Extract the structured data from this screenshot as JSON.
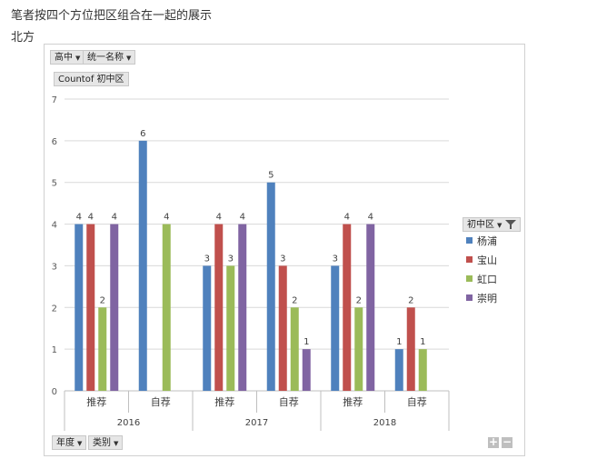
{
  "page": {
    "heading": "笔者按四个方位把区组合在一起的展示",
    "subheading": "北方"
  },
  "pivot": {
    "filter_buttons": [
      {
        "label": "高中"
      },
      {
        "label": "统一名称"
      }
    ],
    "value_field_label": "Countof  初中区",
    "legend_field_label": "初中区",
    "axis_field_buttons": [
      {
        "label": "年度"
      },
      {
        "label": "类别"
      }
    ],
    "zoom_in": "+",
    "zoom_out": "−"
  },
  "chart_data": {
    "type": "bar",
    "title": "",
    "xlabel": "",
    "ylabel": "",
    "ylim": [
      0,
      7
    ],
    "yticks": [
      0,
      1,
      2,
      3,
      4,
      5,
      6,
      7
    ],
    "grid": true,
    "legend_position": "right",
    "groups": [
      {
        "label": "2016",
        "categories": [
          "推荐",
          "自荐"
        ]
      },
      {
        "label": "2017",
        "categories": [
          "推荐",
          "自荐"
        ]
      },
      {
        "label": "2018",
        "categories": [
          "推荐",
          "自荐"
        ]
      }
    ],
    "series": [
      {
        "name": "杨浦",
        "color": "#4f81bd",
        "values": [
          4,
          6,
          3,
          5,
          3,
          1
        ]
      },
      {
        "name": "宝山",
        "color": "#c0504d",
        "values": [
          4,
          null,
          4,
          3,
          4,
          2
        ]
      },
      {
        "name": "虹口",
        "color": "#9bbb59",
        "values": [
          2,
          4,
          3,
          2,
          2,
          1
        ]
      },
      {
        "name": "崇明",
        "color": "#8064a2",
        "values": [
          4,
          null,
          4,
          1,
          4,
          null
        ]
      }
    ]
  }
}
